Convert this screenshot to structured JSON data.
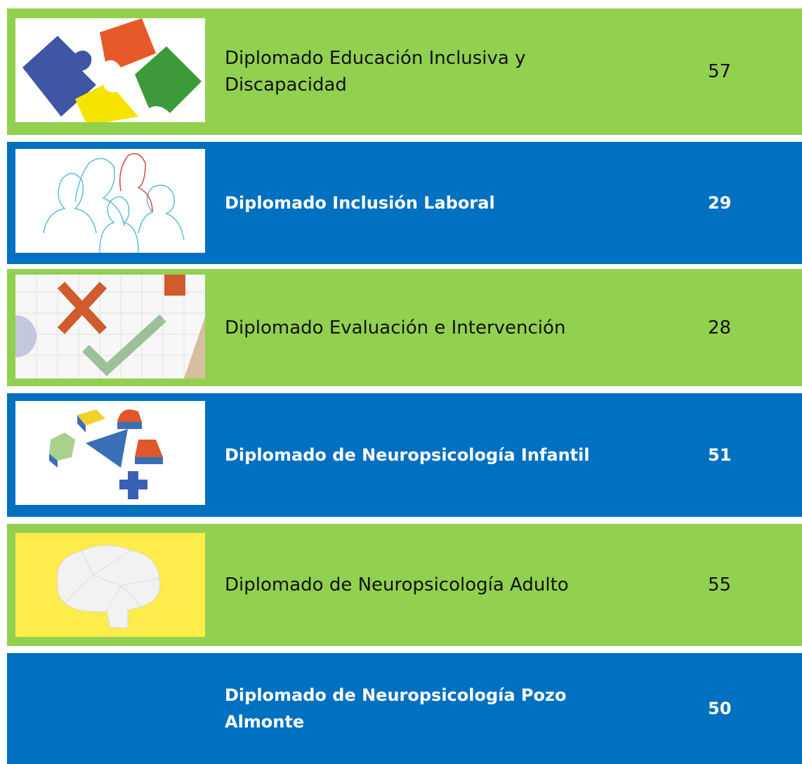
{
  "rows": [
    {
      "title": "Diplomado Educación Inclusiva y Discapacidad",
      "number": 57
    },
    {
      "title": "Diplomado Inclusión Laboral",
      "number": 29
    },
    {
      "title": "Diplomado Evaluación e Intervención",
      "number": 28
    },
    {
      "title": "Diplomado de Neuropsicología Infantil",
      "number": 51
    },
    {
      "title": "Diplomado de Neuropsicología Adulto",
      "number": 55
    },
    {
      "title": "Diplomado de Neuropsicología Pozo Almonte",
      "number": 50
    }
  ]
}
